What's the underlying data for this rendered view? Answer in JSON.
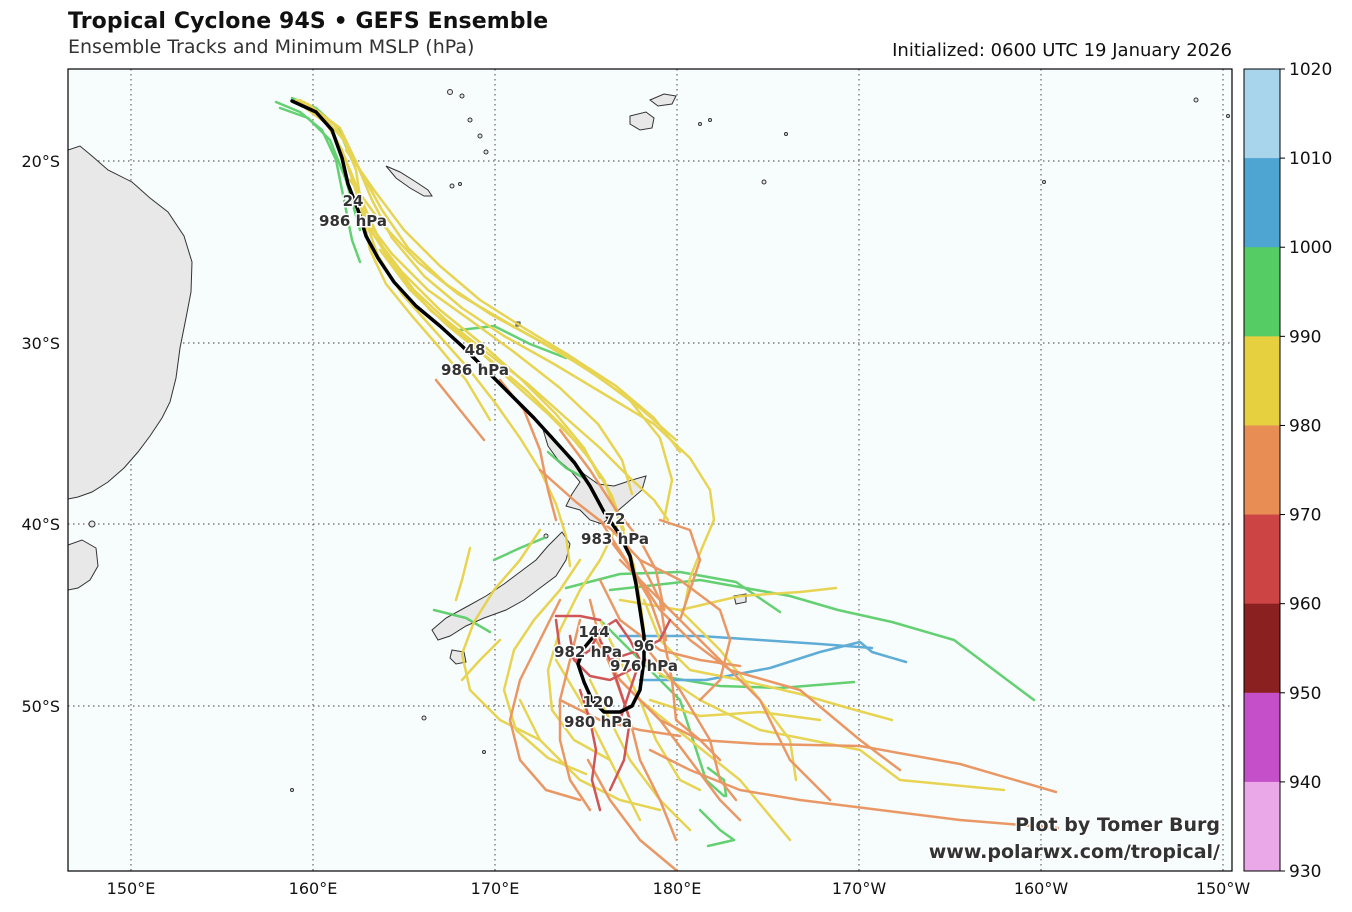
{
  "header": {
    "title": "Tropical Cyclone 94S • GEFS Ensemble",
    "subtitle": "Ensemble Tracks and Minimum MSLP (hPa)",
    "initialized": "Initialized: 0600 UTC 19 January 2026"
  },
  "credit": {
    "line1": "Plot by Tomer Burg",
    "line2": "www.polarwx.com/tropical/"
  },
  "map": {
    "lat_labels": [
      "20°S",
      "30°S",
      "40°S",
      "50°S"
    ],
    "lon_labels": [
      "150°E",
      "160°E",
      "170°E",
      "180°E",
      "170°W",
      "160°W",
      "150°W"
    ]
  },
  "colorbar": {
    "ticks": [
      "1020",
      "1010",
      "1000",
      "990",
      "980",
      "970",
      "960",
      "950",
      "940",
      "930"
    ],
    "colors": [
      "#a8d4ec",
      "#4fa5d2",
      "#55cc64",
      "#e6d040",
      "#e88e55",
      "#cc4444",
      "#8b2020",
      "#c44fc8",
      "#eaa8e8"
    ]
  },
  "mean_track_labels": [
    {
      "hour": "24",
      "pressure": "986 hPa"
    },
    {
      "hour": "48",
      "pressure": "986 hPa"
    },
    {
      "hour": "72",
      "pressure": "983 hPa"
    },
    {
      "hour": "96",
      "pressure": "976 hPa"
    },
    {
      "hour": "120",
      "pressure": "980 hPa"
    },
    {
      "hour": "144",
      "pressure": "982 hPa"
    }
  ]
}
